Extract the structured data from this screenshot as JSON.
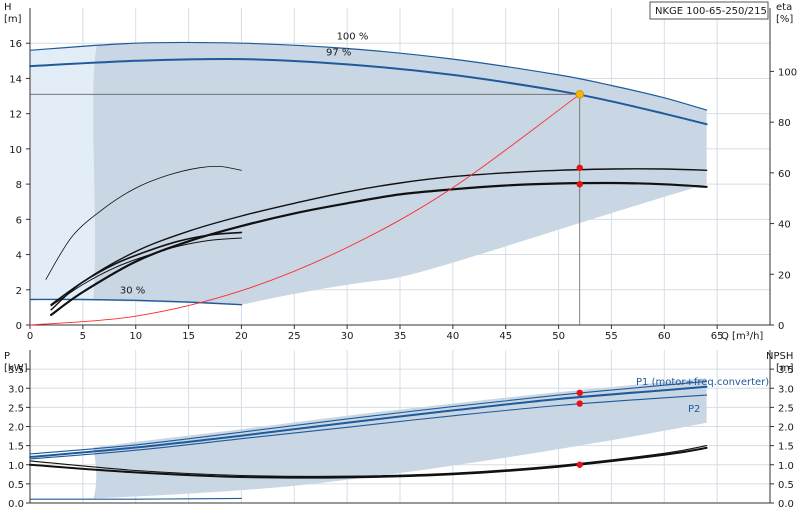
{
  "model_label": "NKGE 100-65-250/215",
  "colors": {
    "band": "#c9d6e4",
    "band_light": "#e3edf8",
    "curve_blue": "#1f5a9a",
    "curve_black": "#111111",
    "system_red": "#ff2a2a",
    "duty_point": "#f5b700",
    "marker": "#e81010"
  },
  "chart_data": [
    {
      "type": "line",
      "panel": "head-efficiency",
      "xlabel": "Q [m³/h]",
      "ylabel": "H\n[m]",
      "y2label": "eta\n[%]",
      "xlim": [
        0,
        70
      ],
      "ylim": [
        0,
        18
      ],
      "y2lim": [
        0,
        125
      ],
      "xticks": [
        0,
        5,
        10,
        15,
        20,
        25,
        30,
        35,
        40,
        45,
        50,
        55,
        60,
        65
      ],
      "yticks": [
        0,
        2,
        4,
        6,
        8,
        10,
        12,
        14,
        16
      ],
      "y2ticks": [
        0,
        20,
        40,
        60,
        80,
        100
      ],
      "grid": true,
      "curve_labels": [
        {
          "text": "100 %",
          "q": 29,
          "h": 16.2
        },
        {
          "text": "97 %",
          "q": 28,
          "h": 15.3
        },
        {
          "text": "30 %",
          "q": 8.5,
          "h": 1.8
        }
      ],
      "head_100": {
        "q": [
          0,
          10,
          20,
          30,
          40,
          50,
          55,
          60,
          64
        ],
        "h": [
          15.6,
          16.0,
          16.0,
          15.7,
          15.1,
          14.2,
          13.6,
          12.9,
          12.2
        ]
      },
      "head_97": {
        "q": [
          0,
          10,
          20,
          30,
          40,
          50,
          55,
          60,
          64
        ],
        "h": [
          14.7,
          15.0,
          15.1,
          14.8,
          14.2,
          13.3,
          12.7,
          12.0,
          11.4
        ]
      },
      "head_30": {
        "q": [
          0,
          5,
          10,
          15,
          20
        ],
        "h": [
          1.45,
          1.45,
          1.4,
          1.3,
          1.15
        ]
      },
      "eta_max": {
        "q": [
          2,
          5,
          10,
          15,
          20,
          25,
          30,
          35,
          40,
          45,
          50,
          55,
          60,
          64
        ],
        "eta": [
          6,
          17,
          29,
          37,
          43,
          48,
          52.5,
          56,
          58.5,
          60,
          61,
          61.5,
          61.5,
          61
        ]
      },
      "eta_97": {
        "q": [
          2,
          5,
          10,
          15,
          20,
          25,
          30,
          35,
          40,
          45,
          50,
          55,
          60,
          64
        ],
        "eta": [
          4,
          13,
          25,
          33,
          39,
          44,
          48,
          51.5,
          53.5,
          55,
          55.8,
          56,
          55.5,
          54.5
        ]
      },
      "eta_low_thin": {
        "q": [
          1.5,
          4,
          7,
          10,
          13,
          16,
          18,
          20
        ],
        "eta": [
          18,
          35,
          46,
          54,
          59,
          62,
          62.5,
          61
        ]
      },
      "eta_low_thick": {
        "q": [
          2,
          5,
          8,
          11,
          14,
          17,
          20
        ],
        "eta": [
          8,
          17,
          24,
          29,
          33,
          35.5,
          36.5
        ]
      },
      "system_curve": {
        "q": [
          0,
          10,
          20,
          30,
          40,
          52
        ],
        "h": [
          0,
          0.5,
          1.95,
          4.4,
          7.8,
          13.1
        ]
      },
      "duty_point": {
        "q": 52,
        "h": 13.1
      },
      "eta_points": {
        "q": 52,
        "eta": [
          62,
          55.5
        ]
      }
    },
    {
      "type": "line",
      "panel": "power-npsh",
      "ylabel": "P\n[kW]",
      "y2label": "NPSH\n[m]",
      "xlim": [
        0,
        70
      ],
      "ylim": [
        0,
        4
      ],
      "y2lim": [
        0,
        4
      ],
      "yticks": [
        0.0,
        0.5,
        1.0,
        1.5,
        2.0,
        2.5,
        3.0,
        3.5
      ],
      "y2ticks": [
        0.0,
        0.5,
        1.0,
        1.5,
        2.0,
        2.5,
        3.0,
        3.5
      ],
      "grid": true,
      "series": [
        {
          "name": "P1 (motor+freq.converter)",
          "q": [
            0,
            10,
            20,
            30,
            40,
            50,
            60,
            64
          ],
          "p": [
            1.28,
            1.52,
            1.85,
            2.2,
            2.52,
            2.82,
            3.08,
            3.18
          ]
        },
        {
          "name": "P2",
          "q": [
            0,
            10,
            20,
            30,
            40,
            50,
            60,
            64
          ],
          "p": [
            1.15,
            1.38,
            1.68,
            1.98,
            2.28,
            2.55,
            2.75,
            2.82
          ]
        },
        {
          "q": [
            0,
            10,
            20,
            30,
            40,
            50,
            60,
            64
          ],
          "p": [
            1.2,
            1.45,
            1.76,
            2.1,
            2.42,
            2.72,
            2.95,
            3.04
          ]
        },
        {
          "q": [
            0,
            10,
            20,
            30,
            40,
            50,
            60,
            64
          ],
          "npsh": [
            1.1,
            0.85,
            0.72,
            0.7,
            0.78,
            0.98,
            1.3,
            1.5
          ]
        },
        {
          "q": [
            0,
            10,
            20,
            30,
            40,
            50,
            60,
            64
          ],
          "npsh": [
            1.0,
            0.8,
            0.68,
            0.67,
            0.75,
            0.95,
            1.26,
            1.44
          ]
        },
        {
          "q": [
            0,
            5,
            10,
            15,
            20
          ],
          "p": [
            0.1,
            0.1,
            0.1,
            0.11,
            0.12
          ]
        }
      ],
      "points": [
        {
          "q": 52,
          "p": 2.88
        },
        {
          "q": 52,
          "p": 2.6
        },
        {
          "q": 52,
          "npsh": 1.0
        }
      ]
    }
  ]
}
